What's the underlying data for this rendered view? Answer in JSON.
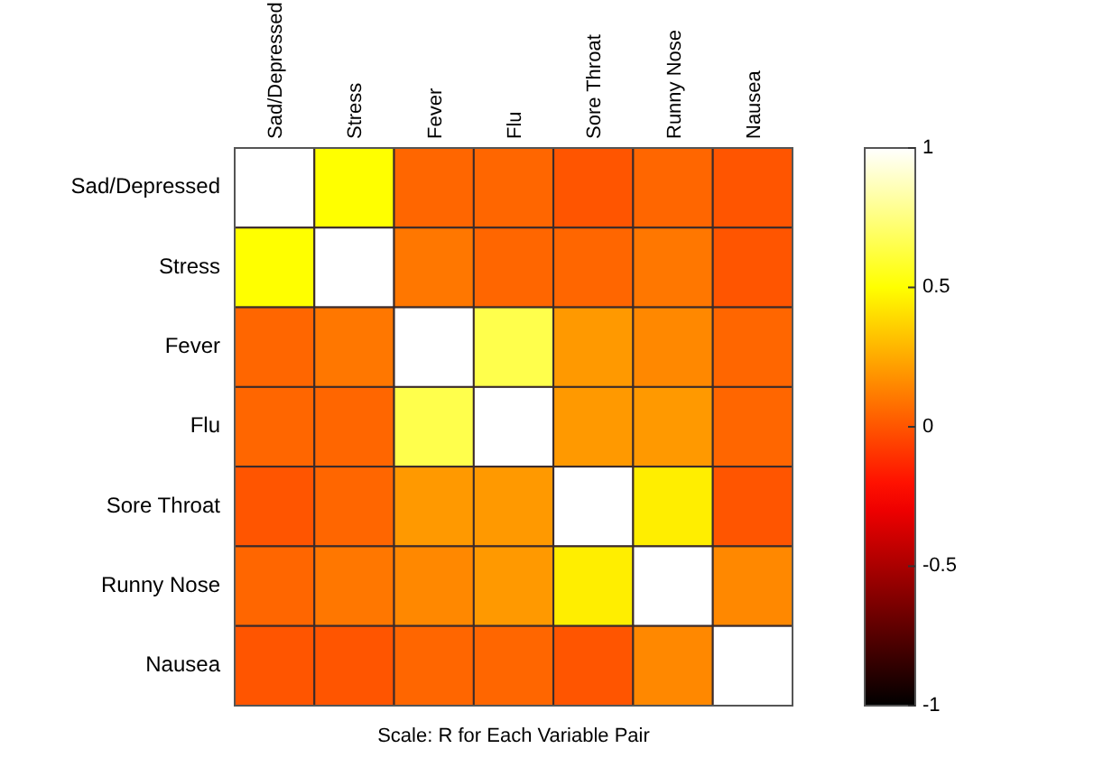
{
  "chart_data": {
    "type": "heatmap",
    "xlabel": "Scale: R for Each Variable Pair",
    "categories": [
      "Sad/Depressed",
      "Stress",
      "Fever",
      "Flu",
      "Sore Throat",
      "Runny Nose",
      "Nausea"
    ],
    "y_categories": [
      "Sad/Depressed",
      "Stress",
      "Fever",
      "Flu",
      "Sore Throat",
      "Runny Nose",
      "Nausea"
    ],
    "cells": [
      [
        1,
        0.5,
        0.05,
        0.05,
        0,
        0.05,
        0
      ],
      [
        0.5,
        1,
        0.1,
        0.05,
        0.05,
        0.1,
        0
      ],
      [
        0.05,
        0.1,
        1,
        0.65,
        0.2,
        0.15,
        0.05
      ],
      [
        0.05,
        0.05,
        0.65,
        1,
        0.2,
        0.2,
        0.05
      ],
      [
        0,
        0.05,
        0.2,
        0.2,
        1,
        0.45,
        0
      ],
      [
        0.05,
        0.1,
        0.15,
        0.2,
        0.45,
        1,
        0.15
      ],
      [
        0,
        0,
        0.05,
        0.05,
        0,
        0.15,
        1
      ]
    ],
    "clim": [
      -1,
      1
    ],
    "cticks": [
      -1,
      -0.5,
      0,
      0.5,
      1
    ]
  }
}
